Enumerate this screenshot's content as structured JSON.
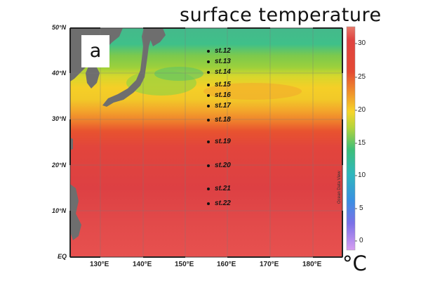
{
  "title": "surface temperature",
  "panel_label": "a",
  "unit": "°C",
  "credit": "Ocean Data View",
  "latitude_labels": [
    "50°N",
    "40°N",
    "30°N",
    "20°N",
    "10°N",
    "EQ"
  ],
  "longitude_labels": [
    "130°E",
    "140°E",
    "150°E",
    "160°E",
    "170°E",
    "180°E"
  ],
  "colorbar": {
    "min": 0,
    "max": 32,
    "ticks": [
      "30",
      "25",
      "20",
      "15",
      "10",
      "5",
      "0"
    ],
    "colors": [
      "#e04546",
      "#e4452d",
      "#ee8a2a",
      "#f6d326",
      "#9ad14c",
      "#3fc07a",
      "#30b5c2",
      "#3a8ee0",
      "#7e6fe6",
      "#c896f0"
    ]
  },
  "stations": [
    {
      "label": "st.12",
      "lat": 44.9,
      "lon": 155.5
    },
    {
      "label": "st.13",
      "lat": 42.6,
      "lon": 155.5
    },
    {
      "label": "st.14",
      "lat": 40.3,
      "lon": 155.5
    },
    {
      "label": "st.15",
      "lat": 37.6,
      "lon": 155.5
    },
    {
      "label": "st.16",
      "lat": 35.3,
      "lon": 155.5
    },
    {
      "label": "st.17",
      "lat": 32.9,
      "lon": 155.5
    },
    {
      "label": "st.18",
      "lat": 29.9,
      "lon": 155.5
    },
    {
      "label": "st.19",
      "lat": 25.1,
      "lon": 155.5
    },
    {
      "label": "st.20",
      "lat": 19.9,
      "lon": 155.5
    },
    {
      "label": "st.21",
      "lat": 14.9,
      "lon": 155.5
    },
    {
      "label": "st.22",
      "lat": 11.6,
      "lon": 155.5
    }
  ],
  "map_extent": {
    "lon_min": 123,
    "lon_max": 187,
    "lat_min": 0,
    "lat_max": 50
  }
}
